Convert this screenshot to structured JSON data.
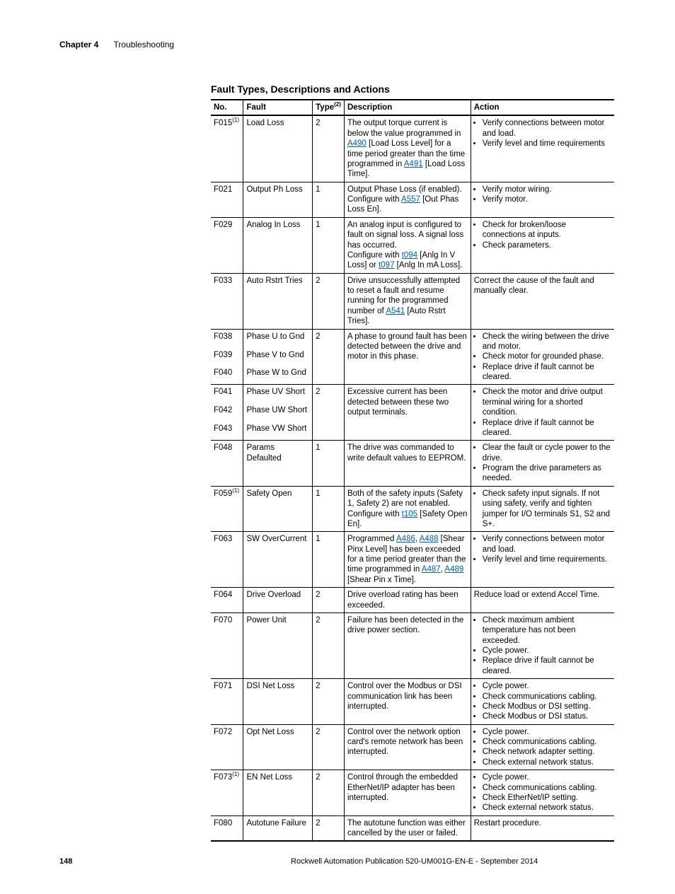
{
  "header": {
    "chapter": "Chapter 4",
    "section": "Troubleshooting"
  },
  "footer": {
    "page": "148",
    "publication": "Rockwell Automation Publication 520-UM001G-EN-E - September 2014"
  },
  "table": {
    "title": "Fault Types, Descriptions and Actions",
    "head": {
      "no": "No.",
      "fault": "Fault",
      "type": "Type",
      "type_sup": "(2)",
      "desc": "Description",
      "action": "Action"
    },
    "rows": [
      {
        "no": "F015",
        "no_sup": "(1)",
        "fault": "Load Loss",
        "type": "2",
        "desc": [
          {
            "t": "The output torque current is below the value programmed in "
          },
          {
            "l": "A490"
          },
          {
            "t": " [Load Loss Level] for a time period greater than the time programmed in "
          },
          {
            "l": "A491"
          },
          {
            "t": " [Load Loss Time]."
          }
        ],
        "action_list": [
          "Verify connections between motor and load.",
          "Verify level and time requirements"
        ]
      },
      {
        "no": "F021",
        "fault": "Output Ph Loss",
        "type": "1",
        "desc": [
          {
            "t": "Output Phase Loss (if enabled).\nConfigure with "
          },
          {
            "l": "A557"
          },
          {
            "t": " [Out Phas Loss En]."
          }
        ],
        "action_list": [
          "Verify motor wiring.",
          "Verify motor."
        ]
      },
      {
        "no": "F029",
        "fault": "Analog In Loss",
        "type": "1",
        "desc": [
          {
            "t": "An analog input is configured to fault on signal loss. A signal loss has occurred.\nConfigure with "
          },
          {
            "l": "t094"
          },
          {
            "t": " [Anlg In V Loss] or "
          },
          {
            "l": "t097"
          },
          {
            "t": " [Anlg In mA Loss]."
          }
        ],
        "action_list": [
          "Check for broken/loose connections at inputs.",
          "Check parameters."
        ]
      },
      {
        "no": "F033",
        "fault": "Auto Rstrt Tries",
        "type": "2",
        "desc": [
          {
            "t": "Drive unsuccessfully attempted to reset a fault and resume running for the programmed number of "
          },
          {
            "l": "A541"
          },
          {
            "t": " [Auto Rstrt Tries]."
          }
        ],
        "action_text": "Correct the cause of the fault and manually clear."
      },
      {
        "group": "phase_gnd",
        "subrows": [
          {
            "no": "F038",
            "fault": "Phase U to Gnd"
          },
          {
            "no": "F039",
            "fault": "Phase V to Gnd"
          },
          {
            "no": "F040",
            "fault": "Phase W to Gnd"
          }
        ],
        "type": "2",
        "desc": [
          {
            "t": "A phase to ground fault has been detected between the drive and motor in this phase."
          }
        ],
        "action_list": [
          "Check the wiring between the drive and motor.",
          "Check motor for grounded phase.",
          "Replace drive if fault cannot be cleared."
        ]
      },
      {
        "group": "phase_short",
        "subrows": [
          {
            "no": "F041",
            "fault": "Phase UV Short"
          },
          {
            "no": "F042",
            "fault": "Phase UW Short"
          },
          {
            "no": "F043",
            "fault": "Phase VW Short"
          }
        ],
        "type": "2",
        "desc": [
          {
            "t": "Excessive current has been detected between these two output terminals."
          }
        ],
        "action_list": [
          "Check the motor and drive output terminal wiring for a shorted condition.",
          "Replace drive if fault cannot be cleared."
        ]
      },
      {
        "no": "F048",
        "fault": "Params Defaulted",
        "type": "1",
        "desc": [
          {
            "t": "The drive was commanded to write default values to EEPROM."
          }
        ],
        "action_list": [
          "Clear the fault or cycle power to the drive.",
          "Program the drive parameters as needed."
        ]
      },
      {
        "no": "F059",
        "no_sup": "(1)",
        "fault": "Safety Open",
        "type": "1",
        "desc": [
          {
            "t": "Both of the safety inputs (Safety 1, Safety 2) are not enabled.\nConfigure with "
          },
          {
            "l": "t105"
          },
          {
            "t": " [Safety Open En]."
          }
        ],
        "action_list": [
          "Check safety input signals. If not using safety, verify and tighten jumper for I/O terminals S1, S2 and S+."
        ]
      },
      {
        "no": "F063",
        "fault": "SW OverCurrent",
        "type": "1",
        "desc": [
          {
            "t": "Programmed "
          },
          {
            "l": "A486"
          },
          {
            "t": ", "
          },
          {
            "l": "A488"
          },
          {
            "t": " [Shear Pinx Level] has been exceeded for a time period greater than the time programmed in "
          },
          {
            "l": "A487"
          },
          {
            "t": ", "
          },
          {
            "l": "A489"
          },
          {
            "t": " [Shear Pin x Time]."
          }
        ],
        "action_list": [
          "Verify connections between motor and load.",
          "Verify level and time requirements."
        ]
      },
      {
        "no": "F064",
        "fault": "Drive Overload",
        "type": "2",
        "desc": [
          {
            "t": "Drive overload rating has been exceeded."
          }
        ],
        "action_text": "Reduce load or extend Accel Time."
      },
      {
        "no": "F070",
        "fault": "Power Unit",
        "type": "2",
        "desc": [
          {
            "t": "Failure has been detected in the drive power section."
          }
        ],
        "action_list": [
          "Check maximum ambient temperature has not been exceeded.",
          "Cycle power.",
          "Replace drive if fault cannot be cleared."
        ]
      },
      {
        "no": "F071",
        "fault": "DSI Net Loss",
        "type": "2",
        "desc": [
          {
            "t": "Control over the Modbus or DSI communication link has been interrupted."
          }
        ],
        "action_list": [
          "Cycle power.",
          "Check communications cabling.",
          "Check Modbus or DSI setting.",
          "Check Modbus or DSI status."
        ]
      },
      {
        "no": "F072",
        "fault": "Opt Net Loss",
        "type": "2",
        "desc": [
          {
            "t": "Control over the network option card's remote network has been interrupted."
          }
        ],
        "action_list": [
          "Cycle power.",
          "Check communications cabling.",
          "Check network adapter setting.",
          "Check external network status."
        ]
      },
      {
        "no": "F073",
        "no_sup": "(1)",
        "fault": "EN Net Loss",
        "type": "2",
        "desc": [
          {
            "t": "Control through the embedded EtherNet/IP adapter has been interrupted."
          }
        ],
        "action_list": [
          "Cycle power.",
          "Check communications cabling.",
          "Check EtherNet/IP setting.",
          "Check external network status."
        ]
      },
      {
        "no": "F080",
        "fault": "Autotune Failure",
        "type": "2",
        "desc": [
          {
            "t": "The autotune function was either cancelled by the user or failed."
          }
        ],
        "action_text": "Restart procedure."
      }
    ]
  }
}
